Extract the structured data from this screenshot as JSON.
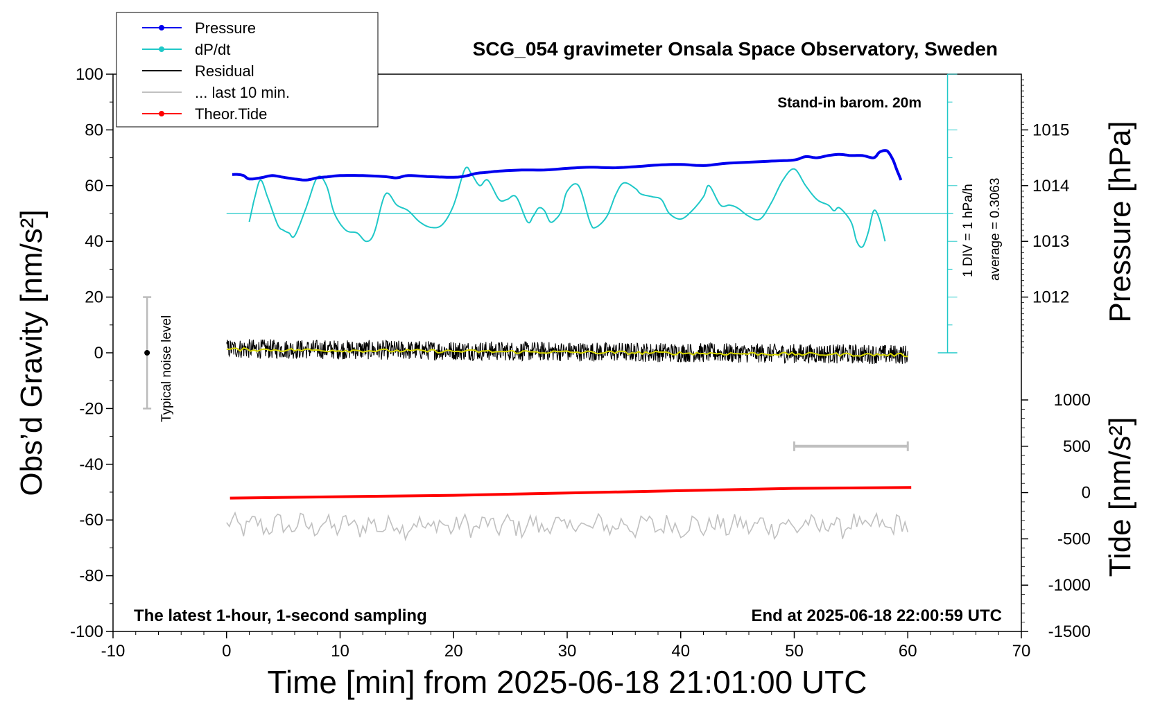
{
  "chart_data": {
    "type": "line",
    "title": "SCG_054 gravimeter Onsala Space Observatory, Sweden",
    "xlabel": "Time [min] from 2025-06-18 21:01:00 UTC",
    "ylabel": "Obs’d Gravity [nm/s²]",
    "ylabel_pressure": "Pressure [hPa]",
    "ylabel_tide": "Tide [nm/s²]",
    "xlim": [
      -10,
      70
    ],
    "ylim": [
      -100,
      100
    ],
    "pressure_ylim": [
      1011,
      1016
    ],
    "tide_ylim": [
      -1500,
      1000
    ],
    "grid": false,
    "legend_position": "top-left",
    "x_ticks": [
      "-10",
      "0",
      "10",
      "20",
      "30",
      "40",
      "50",
      "60",
      "70"
    ],
    "y_ticks": [
      "-100",
      "-80",
      "-60",
      "-40",
      "-20",
      "0",
      "20",
      "40",
      "60",
      "80",
      "100"
    ],
    "pressure_ticks": [
      "1012",
      "1013",
      "1014",
      "1015"
    ],
    "tide_ticks": [
      "-1500",
      "-1000",
      "-500",
      "0",
      "500",
      "1000"
    ],
    "legend": [
      {
        "label": "Pressure",
        "color": "#0000ee",
        "marker": true
      },
      {
        "label": "dP/dt",
        "color": "#1fc8c8",
        "marker": true
      },
      {
        "label": "Residual",
        "color": "#000000",
        "marker": false
      },
      {
        "label": "... last 10 min.",
        "color": "#c0c0c0",
        "marker": false
      },
      {
        "label": "Theor.Tide",
        "color": "#ff0000",
        "marker": true
      }
    ],
    "annotations": {
      "stand_in": "Stand-in barom. 20m",
      "div_label": "1 DIV = 1 hPa/h",
      "average_label": "average = 0.3063",
      "noise_label": "Typical noise level",
      "bottom_left": "The latest 1-hour, 1-second sampling",
      "bottom_right": "End at 2025-06-18 22:00:59 UTC"
    },
    "noise_bar": {
      "x": -7,
      "y_range": [
        -20,
        20
      ]
    },
    "last10_bar": {
      "x_range": [
        50,
        60
      ],
      "tide_value": 500
    },
    "dpdt_baseline": 50,
    "series": [
      {
        "name": "Pressure",
        "axis": "pressure",
        "color": "#0000ee",
        "x": [
          0.5,
          1,
          1.5,
          2,
          3,
          4,
          5,
          6,
          7,
          8,
          9,
          10,
          12,
          14,
          15,
          16,
          18,
          20,
          21,
          22,
          23,
          24,
          26,
          28,
          30,
          32,
          34,
          36,
          38,
          40,
          42,
          44,
          46,
          48,
          50,
          51,
          52,
          53,
          54,
          55,
          56,
          57,
          57.5,
          58,
          58.3,
          58.7,
          59,
          59.4
        ],
        "y": [
          1014.2,
          1014.2,
          1014.18,
          1014.12,
          1014.14,
          1014.18,
          1014.15,
          1014.12,
          1014.1,
          1014.14,
          1014.16,
          1014.18,
          1014.18,
          1014.16,
          1014.14,
          1014.18,
          1014.16,
          1014.15,
          1014.17,
          1014.22,
          1014.24,
          1014.26,
          1014.28,
          1014.28,
          1014.31,
          1014.33,
          1014.32,
          1014.34,
          1014.37,
          1014.38,
          1014.36,
          1014.4,
          1014.42,
          1014.44,
          1014.46,
          1014.52,
          1014.5,
          1014.54,
          1014.56,
          1014.54,
          1014.54,
          1014.5,
          1014.6,
          1014.63,
          1014.6,
          1014.46,
          1014.3,
          1014.1
        ]
      },
      {
        "name": "dP/dt",
        "axis": "gravity",
        "color": "#1fc8c8",
        "x": [
          2,
          2.5,
          3,
          3.6,
          4.5,
          5,
          5.5,
          6,
          7,
          8,
          8.8,
          9.5,
          10.5,
          11.5,
          12.3,
          13,
          14,
          15,
          16,
          17,
          18,
          19,
          20,
          21,
          21.6,
          22.3,
          23,
          24,
          24.7,
          25.5,
          26.5,
          27,
          27.5,
          28,
          28.5,
          29,
          29.5,
          30,
          31,
          32,
          32.5,
          33.5,
          34.3,
          35,
          36,
          36.5,
          37.5,
          38.3,
          39,
          40,
          41,
          42,
          42.5,
          43.5,
          44.3,
          45,
          46,
          47,
          48,
          49,
          50,
          51,
          52,
          53,
          53.5,
          54,
          55,
          55.5,
          56,
          56.5,
          57,
          57.5,
          58
        ],
        "y": [
          47,
          56,
          62,
          56,
          46,
          44,
          43,
          42,
          52,
          63,
          60,
          50,
          44,
          43,
          40,
          43,
          57,
          53,
          51,
          47,
          45,
          46,
          53,
          66,
          64,
          60,
          62,
          55,
          55,
          56,
          47,
          49,
          52,
          51,
          47,
          48,
          51,
          58,
          60,
          47,
          45,
          49,
          57,
          61,
          59,
          57,
          56,
          55,
          50,
          48,
          51,
          56,
          60,
          53,
          53,
          52,
          49,
          48,
          54,
          62,
          66,
          60,
          55,
          53,
          51,
          52,
          47,
          40,
          38,
          43,
          51,
          48,
          40
        ]
      },
      {
        "name": "Residual",
        "axis": "gravity",
        "color": "#000000",
        "x": [
          0,
          60
        ],
        "y": [
          0,
          0
        ]
      },
      {
        "name": "... last 10 min.",
        "axis": "gravity",
        "color": "#c0c0c0",
        "x": [
          0,
          60
        ],
        "y": [
          -62,
          -62
        ]
      },
      {
        "name": "Theor.Tide",
        "axis": "tide",
        "color": "#ff0000",
        "x": [
          0.3,
          10,
          20,
          30,
          40,
          50,
          60.3
        ],
        "y": [
          -60,
          -45,
          -30,
          -5,
          20,
          45,
          55
        ]
      }
    ]
  }
}
